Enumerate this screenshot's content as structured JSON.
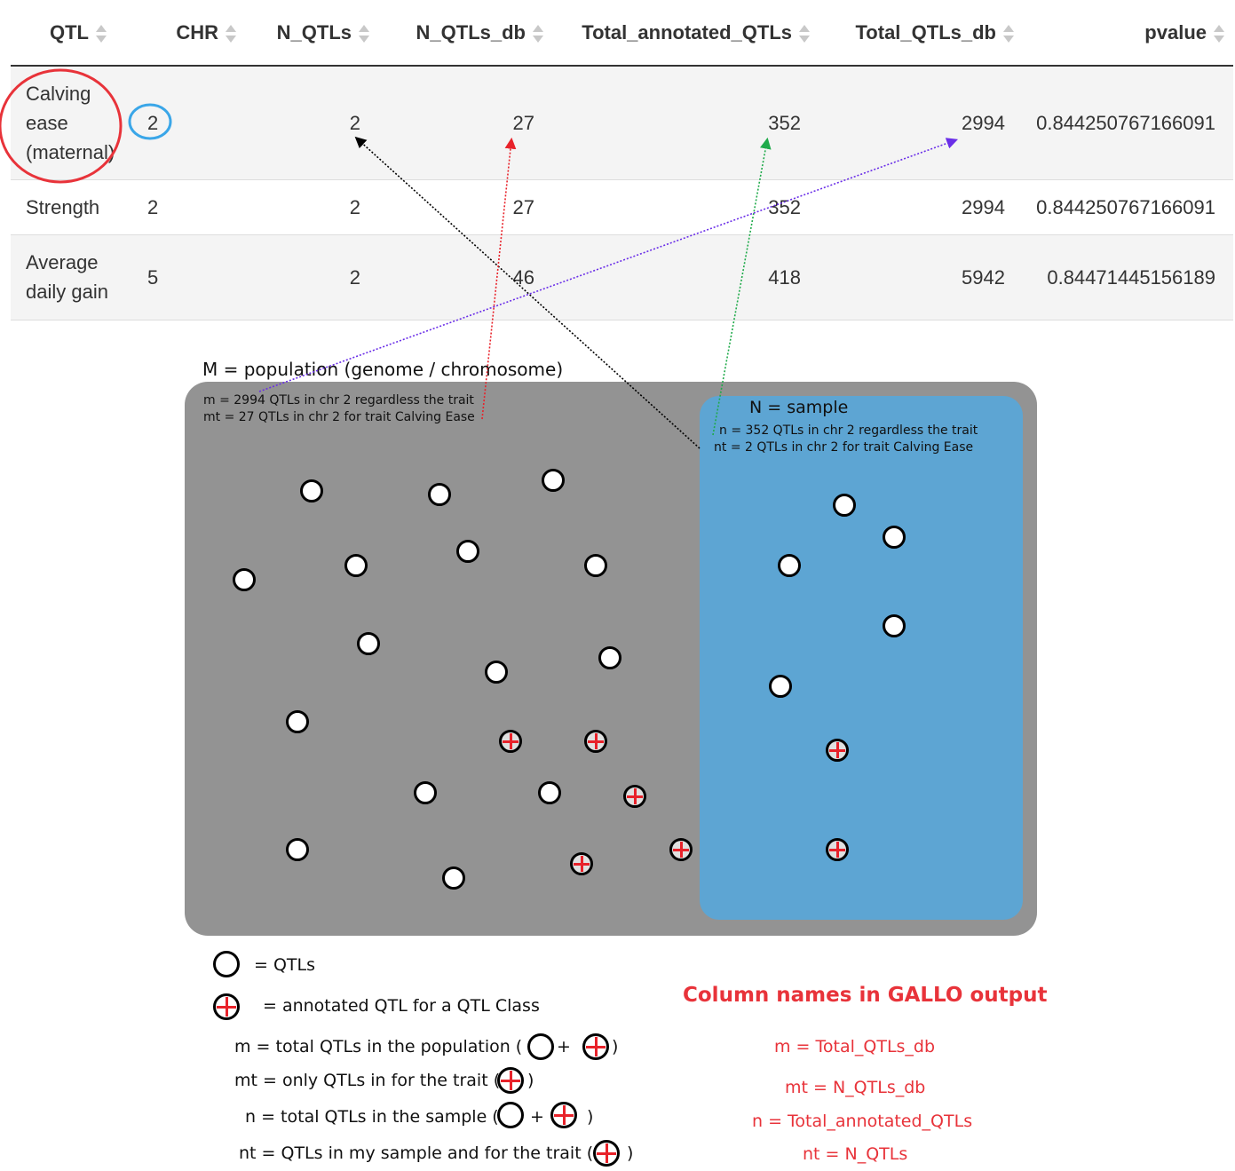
{
  "table": {
    "headers": [
      "QTL",
      "CHR",
      "N_QTLs",
      "N_QTLs_db",
      "Total_annotated_QTLs",
      "Total_QTLs_db",
      "pvalue"
    ],
    "rows": [
      {
        "qtl_line1": "Calving",
        "qtl_line2": "ease",
        "qtl_line3": "(maternal)",
        "chr": "2",
        "n_qtls": "2",
        "n_qtls_db": "27",
        "total_annotated_qtls": "352",
        "total_qtls_db": "2994",
        "pvalue": "0.844250767166091"
      },
      {
        "qtl_line1": "Strength",
        "qtl_line2": "",
        "qtl_line3": "",
        "chr": "2",
        "n_qtls": "2",
        "n_qtls_db": "27",
        "total_annotated_qtls": "352",
        "total_qtls_db": "2994",
        "pvalue": "0.844250767166091"
      },
      {
        "qtl_line1": "Average",
        "qtl_line2": "daily gain",
        "qtl_line3": "",
        "chr": "5",
        "n_qtls": "2",
        "n_qtls_db": "46",
        "total_annotated_qtls": "418",
        "total_qtls_db": "5942",
        "pvalue": "0.84471445156189"
      }
    ]
  },
  "diagram": {
    "population_label": "M =  population (genome / chromosome)",
    "m_note": "m = 2994 QTLs in chr 2 regardless the trait",
    "mt_note": "mt = 27 QTLs in chr 2 for trait Calving Ease",
    "sample_label": "N = sample",
    "n_note": "n = 352 QTLs in chr 2 regardless the trait",
    "nt_note": "nt = 2 QTLs in chr 2 for trait Calving Ease",
    "colors": {
      "population": "#939393",
      "sample": "#5da5d3",
      "annotation": "#e8222a",
      "highlight_red": "#e8333a",
      "highlight_blue": "#3aa6e8"
    }
  },
  "legend": {
    "qtl": "= QTLs",
    "annotated": "= annotated QTL for a QTL Class",
    "m_pre": "m = total QTLs in the population (",
    "mt_pre": "mt = only QTLs in for the trait (",
    "n_pre": "n = total QTLs in the sample (",
    "nt_pre": "nt = QTLs in my sample and for the trait   (",
    "plus": "+",
    "close": ")"
  },
  "mapping": {
    "title": "Column names in GALLO output",
    "m": "m = Total_QTLs_db",
    "mt": "mt = N_QTLs_db",
    "n": "n = Total_annotated_QTLs",
    "nt": "nt = N_QTLs"
  }
}
